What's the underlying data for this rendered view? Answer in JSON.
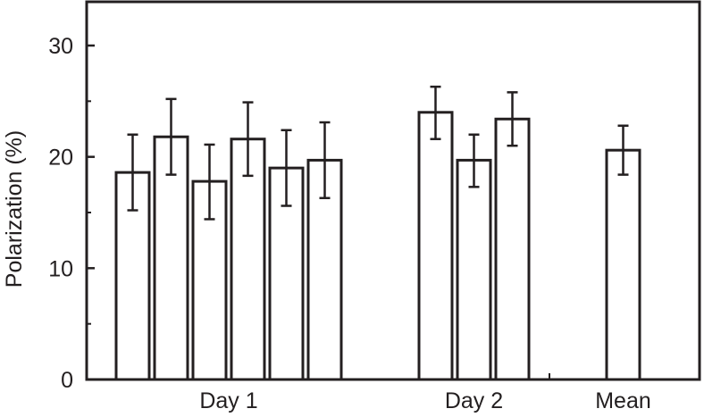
{
  "chart_data": {
    "type": "bar",
    "ylabel": "Polarization (%)",
    "xlabel": "",
    "ylim": [
      0,
      34
    ],
    "yticks": [
      0,
      10,
      20,
      30
    ],
    "grid": false,
    "groups": [
      {
        "label": "Day 1",
        "bars": [
          {
            "value": 18.6,
            "err_low": 15.2,
            "err_high": 22.0
          },
          {
            "value": 21.8,
            "err_low": 18.4,
            "err_high": 25.2
          },
          {
            "value": 17.8,
            "err_low": 14.4,
            "err_high": 21.1
          },
          {
            "value": 21.6,
            "err_low": 18.3,
            "err_high": 24.9
          },
          {
            "value": 19.0,
            "err_low": 15.6,
            "err_high": 22.4
          },
          {
            "value": 19.7,
            "err_low": 16.3,
            "err_high": 23.1
          }
        ]
      },
      {
        "label": "Day 2",
        "bars": [
          {
            "value": 24.0,
            "err_low": 21.6,
            "err_high": 26.3
          },
          {
            "value": 19.7,
            "err_low": 17.3,
            "err_high": 22.0
          },
          {
            "value": 23.4,
            "err_low": 21.0,
            "err_high": 25.8
          }
        ]
      },
      {
        "label": "Mean",
        "bars": [
          {
            "value": 20.6,
            "err_low": 18.4,
            "err_high": 22.8
          }
        ]
      }
    ],
    "colors": {
      "bar_fill": "#ffffff",
      "stroke": "#231f20"
    }
  }
}
